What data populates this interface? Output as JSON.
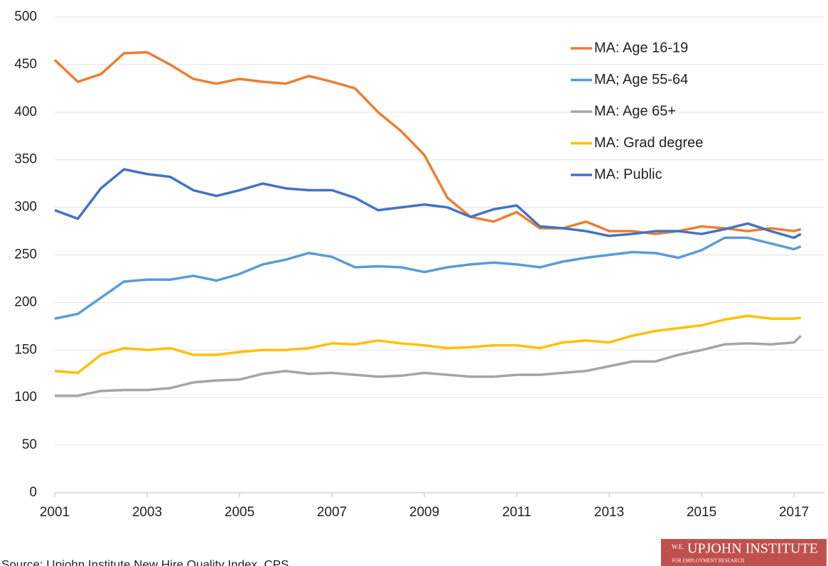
{
  "chart_data": {
    "type": "line",
    "x": [
      2001,
      2001.5,
      2002,
      2002.5,
      2003,
      2003.5,
      2004,
      2004.5,
      2005,
      2005.5,
      2006,
      2006.5,
      2007,
      2007.5,
      2008,
      2008.5,
      2009,
      2009.5,
      2010,
      2010.5,
      2011,
      2011.5,
      2012,
      2012.5,
      2013,
      2013.5,
      2014,
      2014.5,
      2015,
      2015.5,
      2016,
      2016.5,
      2017,
      2017.15
    ],
    "series": [
      {
        "name": "MA: Age 16-19",
        "color": "#ed7d31",
        "values": [
          455,
          432,
          440,
          462,
          463,
          450,
          435,
          430,
          435,
          432,
          430,
          438,
          432,
          425,
          400,
          380,
          355,
          310,
          290,
          285,
          295,
          278,
          278,
          285,
          275,
          275,
          272,
          275,
          280,
          278,
          275,
          278,
          275,
          277
        ]
      },
      {
        "name": "MA; Age 55-64",
        "color": "#5b9bd5",
        "values": [
          183,
          188,
          205,
          222,
          224,
          224,
          228,
          223,
          230,
          240,
          245,
          252,
          248,
          237,
          238,
          237,
          232,
          237,
          240,
          242,
          240,
          237,
          243,
          247,
          250,
          253,
          252,
          247,
          255,
          268,
          268,
          262,
          256,
          259
        ]
      },
      {
        "name": "MA: Age 65+",
        "color": "#a5a5a5",
        "values": [
          102,
          102,
          107,
          108,
          108,
          110,
          116,
          118,
          119,
          125,
          128,
          125,
          126,
          124,
          122,
          123,
          126,
          124,
          122,
          122,
          124,
          124,
          126,
          128,
          133,
          138,
          138,
          145,
          150,
          156,
          157,
          156,
          158,
          165
        ]
      },
      {
        "name": "MA: Grad degree",
        "color": "#ffc000",
        "values": [
          128,
          126,
          145,
          152,
          150,
          152,
          145,
          145,
          148,
          150,
          150,
          152,
          157,
          156,
          160,
          157,
          155,
          152,
          153,
          155,
          155,
          152,
          158,
          160,
          158,
          165,
          170,
          173,
          176,
          182,
          186,
          183,
          183,
          184
        ]
      },
      {
        "name": "MA: Public",
        "color": "#4472c4",
        "values": [
          297,
          288,
          320,
          340,
          335,
          332,
          318,
          312,
          318,
          325,
          320,
          318,
          318,
          310,
          297,
          300,
          303,
          300,
          290,
          298,
          302,
          280,
          278,
          275,
          270,
          272,
          275,
          275,
          272,
          277,
          283,
          275,
          268,
          272
        ]
      }
    ],
    "xlim": [
      2001,
      2017.66
    ],
    "xticks": [
      2001,
      2003,
      2005,
      2007,
      2009,
      2011,
      2013,
      2015,
      2017
    ],
    "ylim": [
      0,
      500
    ],
    "yticks": [
      0,
      50,
      100,
      150,
      200,
      250,
      300,
      350,
      400,
      450,
      500
    ],
    "grid": true,
    "legend": "top-right",
    "source": "Source: Upjohn Institute New Hire Quality Index, CPS",
    "logo": {
      "prefix": "W.E.",
      "name": "UPJOHN INSTITUTE",
      "tagline": "FOR EMPLOYMENT RESEARCH"
    }
  }
}
